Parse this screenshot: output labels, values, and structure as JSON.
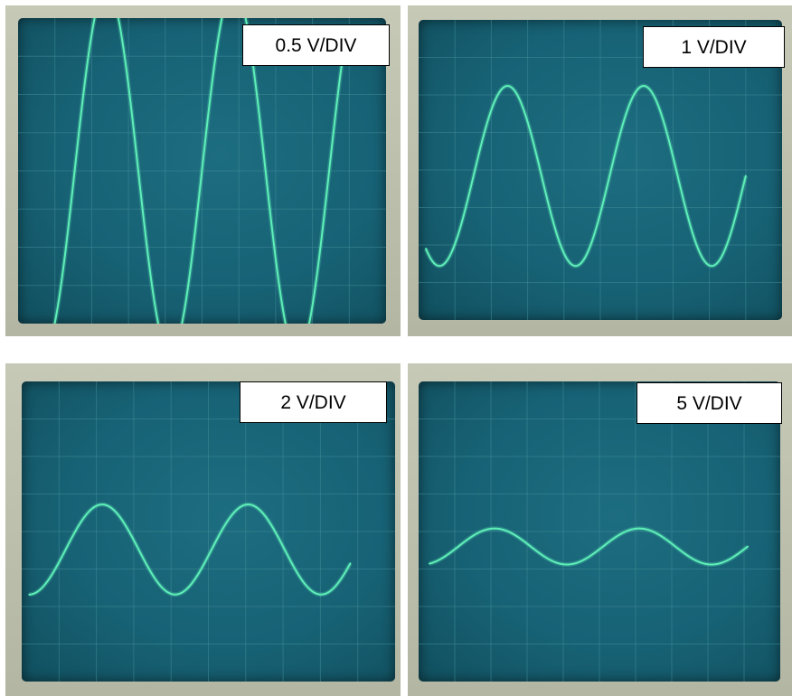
{
  "panels": [
    {
      "label": "0.5 V/DIV",
      "volts_per_div": 0.5
    },
    {
      "label": "1 V/DIV",
      "volts_per_div": 1
    },
    {
      "label": "2 V/DIV",
      "volts_per_div": 2
    },
    {
      "label": "5 V/DIV",
      "volts_per_div": 5
    }
  ],
  "colors": {
    "trace": "#5ef0b8",
    "grid": "#3f8a96",
    "screen": "#176275",
    "bezel": "#b9bcaa"
  }
}
